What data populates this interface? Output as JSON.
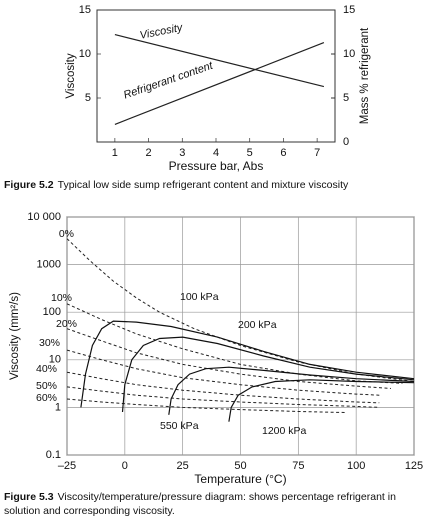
{
  "chart_data": [
    {
      "type": "line",
      "caption_label": "Figure 5.2",
      "caption": "Typical low side sump refrigerant content and mixture viscosity",
      "xlabel": "Pressure bar, Abs",
      "ylabel": "Viscosity",
      "y2label": "Mass % refrigerant",
      "xlim": [
        0.47,
        7.53
      ],
      "xticks": [
        1,
        2,
        3,
        4,
        5,
        6,
        7
      ],
      "ylim": [
        0,
        15
      ],
      "yticks": [
        5,
        10,
        15
      ],
      "y2lim": [
        0,
        15
      ],
      "y2ticks": [
        0,
        5,
        10,
        15
      ],
      "series": [
        {
          "name": "Viscosity",
          "color": "#222",
          "x": [
            1,
            7.2
          ],
          "values": [
            12.2,
            6.3
          ]
        },
        {
          "name": "Refrigerant content",
          "color": "#222",
          "axis": "y2",
          "x": [
            1,
            7.2
          ],
          "values": [
            2,
            11.3
          ]
        }
      ]
    },
    {
      "type": "line",
      "caption_label": "Figure 5.3",
      "caption": "Viscosity/temperature/pressure diagram: shows percentage refrigerant in solution and corresponding viscosity.",
      "xlabel": "Temperature (°C)",
      "ylabel": "Viscosity (mm²/s)",
      "log_y": true,
      "grid": true,
      "xlim": [
        -25,
        125
      ],
      "xticks": [
        {
          "value": -25,
          "label": "–25"
        },
        0,
        25,
        50,
        75,
        100,
        125
      ],
      "ylim": [
        0.1,
        10000
      ],
      "yticks": [
        0.1,
        1,
        10,
        100,
        1000,
        {
          "value": 10000,
          "label": "10 000"
        }
      ],
      "series": [
        {
          "name": "0%",
          "color": "#222",
          "dashed": true,
          "x": [
            -25,
            -15,
            -5,
            5,
            15,
            30,
            50,
            75,
            100,
            125
          ],
          "values": [
            3500,
            1200,
            450,
            200,
            100,
            45,
            20,
            9,
            5,
            3.5
          ]
        },
        {
          "name": "10%",
          "color": "#222",
          "dashed": true,
          "x": [
            -25,
            -10,
            5,
            25,
            50,
            75,
            100,
            120
          ],
          "values": [
            150,
            70,
            35,
            17,
            8,
            5,
            3.6,
            3.2
          ]
        },
        {
          "name": "20%",
          "color": "#222",
          "dashed": true,
          "x": [
            -25,
            -10,
            5,
            25,
            50,
            75,
            100,
            115
          ],
          "values": [
            45,
            25,
            14,
            8,
            5,
            3.5,
            2.8,
            2.5
          ]
        },
        {
          "name": "30%",
          "color": "#222",
          "dashed": true,
          "x": [
            -25,
            -10,
            5,
            25,
            50,
            75,
            100,
            110
          ],
          "values": [
            16,
            10,
            6.5,
            4.2,
            3,
            2.3,
            1.9,
            1.8
          ]
        },
        {
          "name": "40%",
          "color": "#222",
          "dashed": true,
          "x": [
            -25,
            -10,
            5,
            25,
            50,
            75,
            100,
            110
          ],
          "values": [
            5.5,
            4,
            3,
            2.3,
            1.8,
            1.5,
            1.3,
            1.25
          ]
        },
        {
          "name": "50%",
          "color": "#222",
          "dashed": true,
          "x": [
            -25,
            -10,
            5,
            25,
            50,
            75,
            100,
            110
          ],
          "values": [
            2.7,
            2.2,
            1.8,
            1.5,
            1.3,
            1.15,
            1.05,
            1
          ]
        },
        {
          "name": "60%",
          "color": "#222",
          "dashed": true,
          "x": [
            -25,
            -10,
            5,
            25,
            50,
            75,
            95
          ],
          "values": [
            1.5,
            1.3,
            1.15,
            1,
            0.9,
            0.82,
            0.78
          ]
        },
        {
          "name": "100 kPa",
          "color": "#111",
          "x": [
            -19,
            -17,
            -14,
            -10,
            -5,
            5,
            20,
            40,
            60,
            80,
            100,
            125
          ],
          "values": [
            1,
            5,
            20,
            45,
            65,
            62,
            50,
            30,
            15,
            8,
            5.5,
            4
          ]
        },
        {
          "name": "200 kPa",
          "color": "#111",
          "x": [
            -1,
            0,
            3,
            8,
            15,
            25,
            40,
            60,
            80,
            100,
            125
          ],
          "values": [
            0.8,
            3,
            10,
            20,
            28,
            30,
            22,
            12,
            7,
            5,
            3.8
          ]
        },
        {
          "name": "550 kPa",
          "color": "#111",
          "x": [
            19,
            20,
            23,
            28,
            35,
            45,
            60,
            80,
            100,
            125
          ],
          "values": [
            0.7,
            1.5,
            3,
            5,
            6.5,
            7,
            6,
            4.8,
            4,
            3.5
          ]
        },
        {
          "name": "1200 kPa",
          "color": "#111",
          "x": [
            45,
            46,
            49,
            55,
            65,
            80,
            100,
            125
          ],
          "values": [
            0.5,
            1,
            1.8,
            2.7,
            3.5,
            3.8,
            3.5,
            3.3
          ]
        }
      ]
    }
  ]
}
